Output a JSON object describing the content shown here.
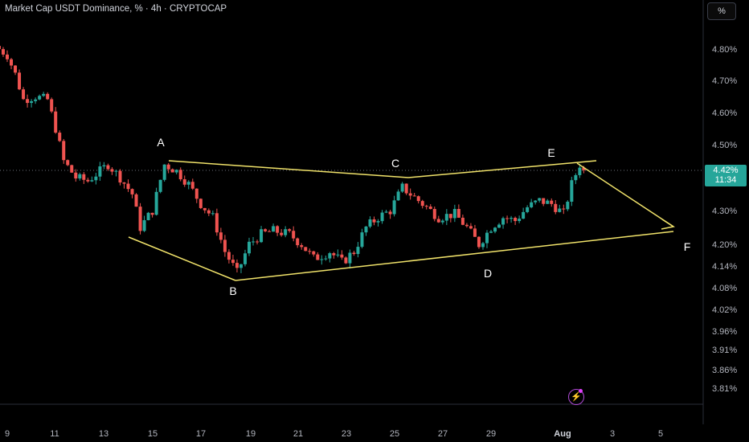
{
  "header": {
    "title": "Market Cap USDT Dominance, % · 4h · CRYPTOCAP",
    "scale_button": "%"
  },
  "price_badge": {
    "value": "4.42%",
    "countdown": "11:34",
    "color": "#26a69a"
  },
  "colors": {
    "up": "#26a69a",
    "down": "#ef5350",
    "pattern": "#f0e26a",
    "background": "#000000"
  },
  "chart_data": {
    "type": "candlestick",
    "title": "Market Cap USDT Dominance, % · 4h · CRYPTOCAP",
    "y_ticks": [
      "4.80%",
      "4.70%",
      "4.60%",
      "4.50%",
      "4.30%",
      "4.20%",
      "4.14%",
      "4.08%",
      "4.02%",
      "3.96%",
      "3.91%",
      "3.86%",
      "3.81%"
    ],
    "x_ticks": [
      "9",
      "11",
      "13",
      "15",
      "17",
      "19",
      "21",
      "23",
      "25",
      "27",
      "29",
      "Aug",
      "3",
      "5"
    ],
    "current_value": 4.42,
    "close_path": [
      [
        "Jul 8 12:00",
        4.81
      ],
      [
        "Jul 9 00:00",
        4.78
      ],
      [
        "Jul 9 08:00",
        4.72
      ],
      [
        "Jul 9 16:00",
        4.64
      ],
      [
        "Jul 10 04:00",
        4.65
      ],
      [
        "Jul 10 16:00",
        4.64
      ],
      [
        "Jul 11 00:00",
        4.55
      ],
      [
        "Jul 11 08:00",
        4.45
      ],
      [
        "Jul 11 20:00",
        4.4
      ],
      [
        "Jul 12 08:00",
        4.39
      ],
      [
        "Jul 12 16:00",
        4.41
      ],
      [
        "Jul 13 04:00",
        4.44
      ],
      [
        "Jul 13 16:00",
        4.4
      ],
      [
        "Jul 14 04:00",
        4.35
      ],
      [
        "Jul 14 12:00",
        4.25
      ],
      [
        "Jul 15 00:00",
        4.3
      ],
      [
        "Jul 15 12:00",
        4.44
      ],
      [
        "Jul 16 00:00",
        4.42
      ],
      [
        "Jul 16 12:00",
        4.38
      ],
      [
        "Jul 17 00:00",
        4.32
      ],
      [
        "Jul 17 12:00",
        4.28
      ],
      [
        "Jul 18 00:00",
        4.18
      ],
      [
        "Jul 18 12:00",
        4.12
      ],
      [
        "Jul 19 00:00",
        4.2
      ],
      [
        "Jul 19 12:00",
        4.23
      ],
      [
        "Jul 20 00:00",
        4.24
      ],
      [
        "Jul 20 16:00",
        4.23
      ],
      [
        "Jul 21 04:00",
        4.2
      ],
      [
        "Jul 21 16:00",
        4.16
      ],
      [
        "Jul 22 08:00",
        4.18
      ],
      [
        "Jul 22 20:00",
        4.15
      ],
      [
        "Jul 23 08:00",
        4.18
      ],
      [
        "Jul 23 20:00",
        4.25
      ],
      [
        "Jul 24 08:00",
        4.28
      ],
      [
        "Jul 24 20:00",
        4.3
      ],
      [
        "Jul 25 08:00",
        4.37
      ],
      [
        "Jul 25 20:00",
        4.34
      ],
      [
        "Jul 26 08:00",
        4.31
      ],
      [
        "Jul 26 20:00",
        4.28
      ],
      [
        "Jul 27 12:00",
        4.29
      ],
      [
        "Jul 28 00:00",
        4.25
      ],
      [
        "Jul 28 12:00",
        4.2
      ],
      [
        "Jul 29 00:00",
        4.25
      ],
      [
        "Jul 29 12:00",
        4.28
      ],
      [
        "Jul 30 00:00",
        4.27
      ],
      [
        "Jul 30 12:00",
        4.31
      ],
      [
        "Jul 31 00:00",
        4.33
      ],
      [
        "Jul 31 12:00",
        4.32
      ],
      [
        "Aug 1 00:00",
        4.29
      ],
      [
        "Aug 1 08:00",
        4.38
      ],
      [
        "Aug 1 16:00",
        4.44
      ],
      [
        "Aug 1 20:00",
        4.42
      ]
    ],
    "annotations": [
      {
        "label": "A"
      },
      {
        "label": "B"
      },
      {
        "label": "C"
      },
      {
        "label": "D"
      },
      {
        "label": "E"
      },
      {
        "label": "F"
      }
    ],
    "grid": false
  }
}
